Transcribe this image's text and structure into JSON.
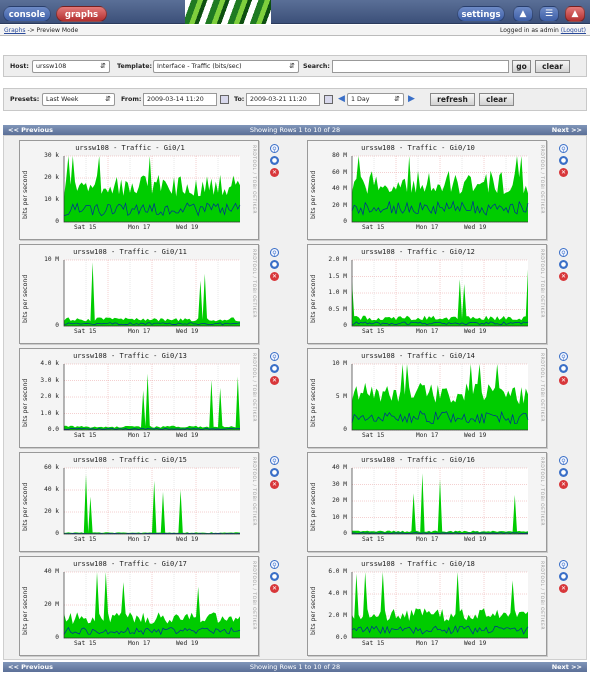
{
  "header": {
    "console_label": "console",
    "graphs_label": "graphs",
    "settings_label": "settings"
  },
  "breadcrumb": {
    "link": "Graphs",
    "current": "-> Preview Mode",
    "user_prefix": "Logged in as admin",
    "logout": "(Logout)"
  },
  "filter": {
    "host_label": "Host:",
    "host_value": "urssw108",
    "template_label": "Template:",
    "template_value": "Interface - Traffic (bits/sec)",
    "search_label": "Search:",
    "search_value": "",
    "go_label": "go",
    "clear_label": "clear"
  },
  "timespan": {
    "presets_label": "Presets:",
    "presets_value": "Last Week",
    "from_label": "From:",
    "from_value": "2009-03-14 11:20",
    "to_label": "To:",
    "to_value": "2009-03-21 11:20",
    "step_value": "1 Day",
    "refresh_label": "refresh",
    "clear_label": "clear"
  },
  "nav": {
    "previous": "<< Previous",
    "status": "Showing Rows 1 to 10 of 28",
    "next": "Next >>"
  },
  "colors": {
    "inbound": "#00cc00",
    "outbound": "#002a97",
    "grid_major": "#e8a0a0",
    "grid_minor": "#d0d0d0"
  },
  "graphs": [
    {
      "title": "urssw108 - Traffic - Gi0/1",
      "yticks": [
        "30 k",
        "20 k",
        "10 k",
        "0"
      ],
      "ylabel": "bits per second",
      "xticks": [
        "Sat 15",
        "Mon 17",
        "Wed 19"
      ],
      "side_text": "RRDTOOL / TOBI OETIKER"
    },
    {
      "title": "urssw108 - Traffic - Gi0/10",
      "yticks": [
        "80 M",
        "60 M",
        "40 M",
        "20 M",
        "0"
      ],
      "ylabel": "bits per second",
      "xticks": [
        "Sat 15",
        "Mon 17",
        "Wed 19"
      ],
      "side_text": "RRDTOOL / TOBI OETIKER"
    },
    {
      "title": "urssw108 - Traffic - Gi0/11",
      "yticks": [
        "10 M",
        "0"
      ],
      "ylabel": "bits per second",
      "xticks": [
        "Sat 15",
        "Mon 17",
        "Wed 19"
      ],
      "side_text": "RRDTOOL / TOBI OETIKER"
    },
    {
      "title": "urssw108 - Traffic - Gi0/12",
      "yticks": [
        "2.0 M",
        "1.5 M",
        "1.0 M",
        "0.5 M",
        "0"
      ],
      "ylabel": "bits per second",
      "xticks": [
        "Sat 15",
        "Mon 17",
        "Wed 19"
      ],
      "side_text": "RRDTOOL / TOBI OETIKER"
    },
    {
      "title": "urssw108 - Traffic - Gi0/13",
      "yticks": [
        "4.0 k",
        "3.0 k",
        "2.0 k",
        "1.0 k",
        "0.0"
      ],
      "ylabel": "bits per second",
      "xticks": [
        "Sat 15",
        "Mon 17",
        "Wed 19"
      ],
      "side_text": "RRDTOOL / TOBI OETIKER"
    },
    {
      "title": "urssw108 - Traffic - Gi0/14",
      "yticks": [
        "10 M",
        "5 M",
        "0"
      ],
      "ylabel": "bits per second",
      "xticks": [
        "Sat 15",
        "Mon 17",
        "Wed 19"
      ],
      "side_text": "RRDTOOL / TOBI OETIKER"
    },
    {
      "title": "urssw108 - Traffic - Gi0/15",
      "yticks": [
        "60 k",
        "40 k",
        "20 k",
        "0"
      ],
      "ylabel": "bits per second",
      "xticks": [
        "Sat 15",
        "Mon 17",
        "Wed 19"
      ],
      "side_text": "RRDTOOL / TOBI OETIKER"
    },
    {
      "title": "urssw108 - Traffic - Gi0/16",
      "yticks": [
        "40 M",
        "30 M",
        "20 M",
        "10 M",
        "0"
      ],
      "ylabel": "bits per second",
      "xticks": [
        "Sat 15",
        "Mon 17",
        "Wed 19"
      ],
      "side_text": "RRDTOOL / TOBI OETIKER"
    },
    {
      "title": "urssw108 - Traffic - Gi0/17",
      "yticks": [
        "40 M",
        "20 M",
        "0"
      ],
      "ylabel": "bits per second",
      "xticks": [
        "Sat 15",
        "Mon 17",
        "Wed 19"
      ],
      "side_text": "RRDTOOL / TOBI OETIKER"
    },
    {
      "title": "urssw108 - Traffic - Gi0/18",
      "yticks": [
        "6.0 M",
        "4.0 M",
        "2.0 M",
        "0.0"
      ],
      "ylabel": "bits per second",
      "xticks": [
        "Sat 15",
        "Mon 17",
        "Wed 19"
      ],
      "side_text": "RRDTOOL / TOBI OETIKER"
    }
  ]
}
